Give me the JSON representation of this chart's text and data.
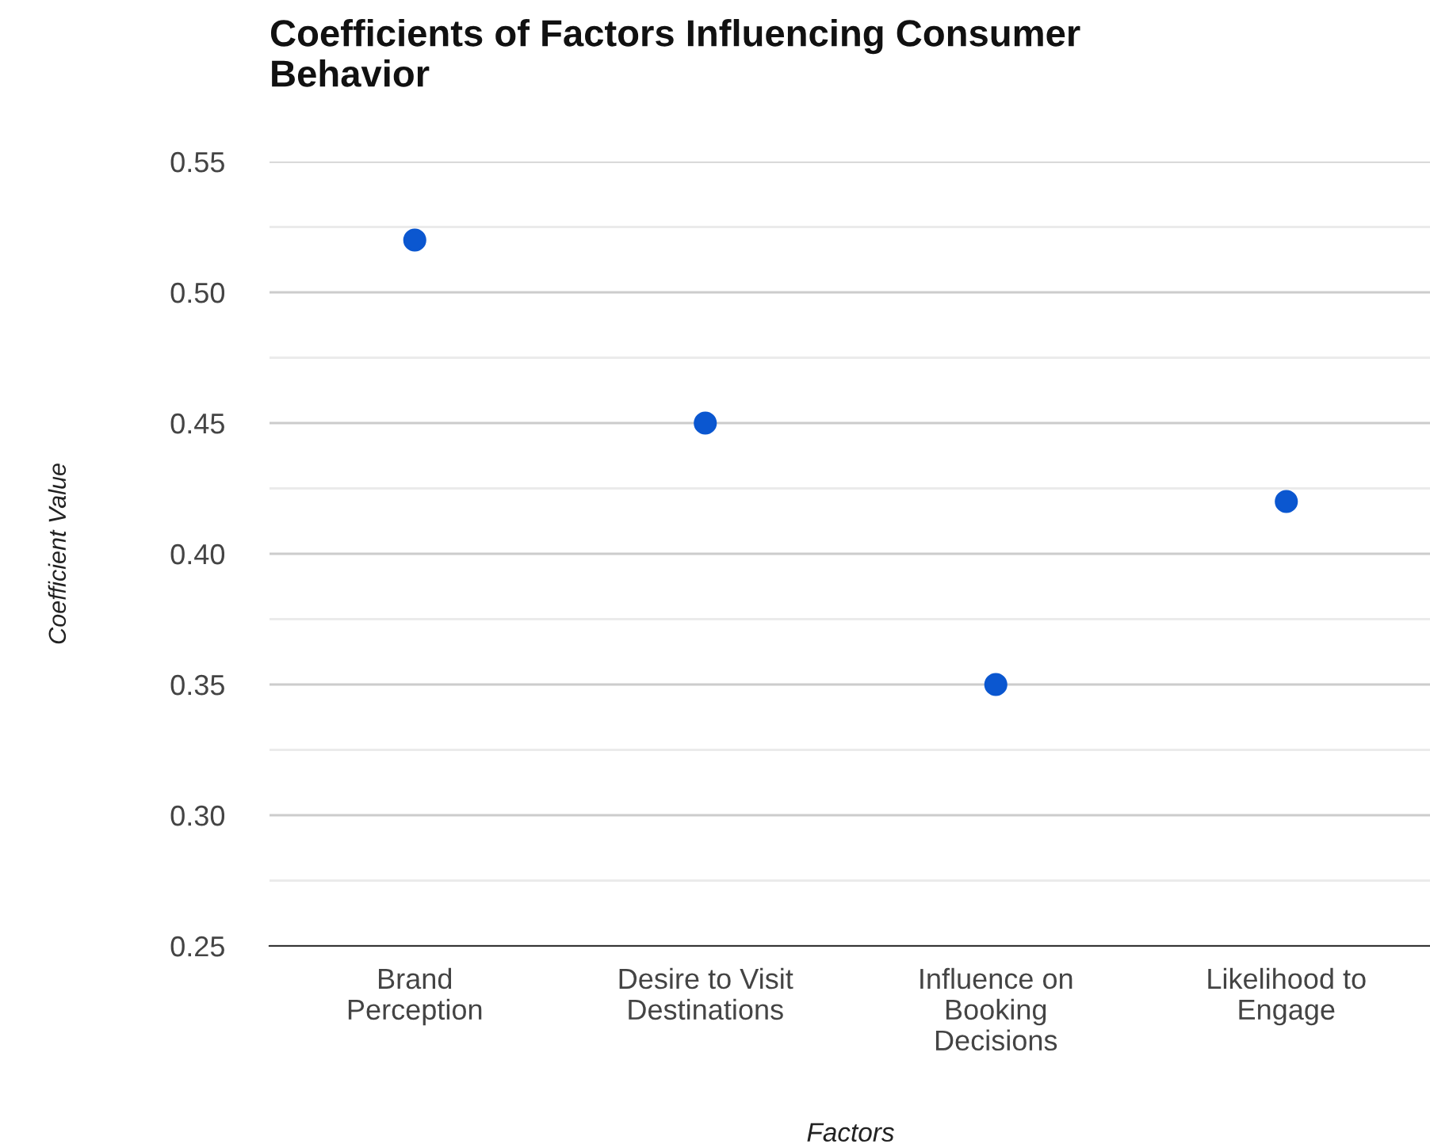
{
  "chart_data": {
    "type": "scatter",
    "title": "Coefficients of Factors Influencing Consumer\nBehavior",
    "xlabel": "Factors",
    "ylabel": "Coefficient Value",
    "categories": [
      "Brand\nPerception",
      "Desire to Visit\nDestinations",
      "Influence on\nBooking\nDecisions",
      "Likelihood to\nEngage"
    ],
    "series": [
      {
        "color": "#0b57d0",
        "values": [
          0.52,
          0.45,
          0.35,
          0.42
        ]
      }
    ],
    "ylim": [
      0.25,
      0.55
    ],
    "yticks": [
      {
        "value": 0.25,
        "label": "0.25"
      },
      {
        "value": 0.275,
        "label": null
      },
      {
        "value": 0.3,
        "label": "0.30"
      },
      {
        "value": 0.325,
        "label": null
      },
      {
        "value": 0.35,
        "label": "0.35"
      },
      {
        "value": 0.375,
        "label": null
      },
      {
        "value": 0.4,
        "label": "0.40"
      },
      {
        "value": 0.425,
        "label": null
      },
      {
        "value": 0.45,
        "label": "0.45"
      },
      {
        "value": 0.475,
        "label": null
      },
      {
        "value": 0.5,
        "label": "0.50"
      },
      {
        "value": 0.525,
        "label": null
      },
      {
        "value": 0.55,
        "label": "0.55"
      }
    ],
    "grid": "y",
    "marker": "circle",
    "legend": false
  }
}
